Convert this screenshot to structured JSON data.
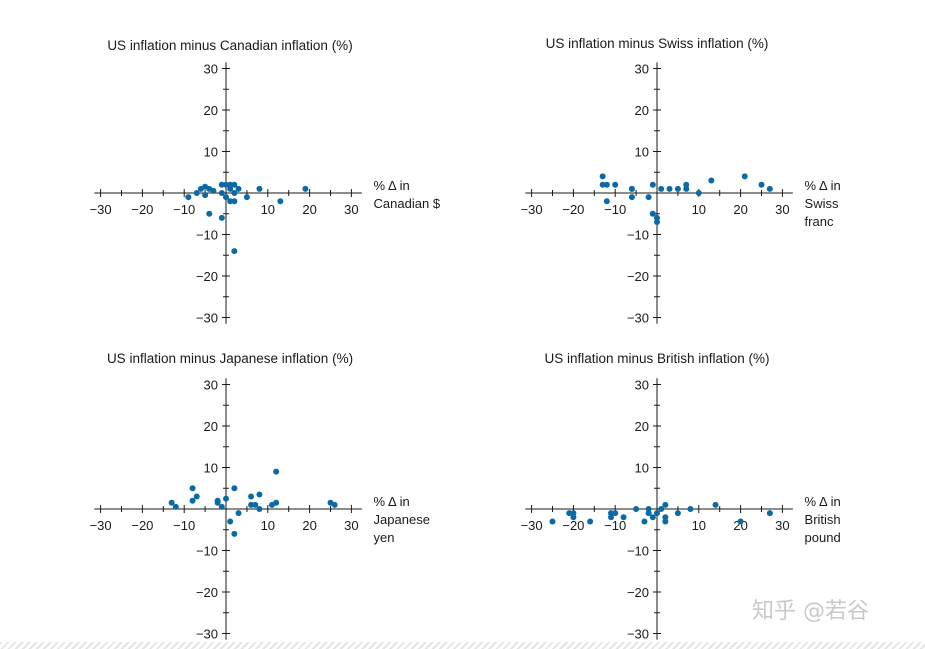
{
  "chart_data": [
    {
      "type": "scatter",
      "title": "US inflation minus Canadian inflation (%)",
      "xlabel": [
        "% Δ in",
        "Canadian $"
      ],
      "xlim": [
        -30,
        30
      ],
      "ylim": [
        -30,
        30
      ],
      "x_ticks": [
        "−30",
        "−20",
        "−10",
        "10",
        "20",
        "30"
      ],
      "y_ticks": [
        "30",
        "20",
        "10",
        "−10",
        "−20",
        "−30"
      ],
      "points": [
        [
          -9,
          -1
        ],
        [
          -7,
          0
        ],
        [
          -6,
          1
        ],
        [
          -5,
          1.5
        ],
        [
          -5,
          -0.5
        ],
        [
          -4,
          1
        ],
        [
          -3,
          0.5
        ],
        [
          -4,
          -5
        ],
        [
          -1,
          0
        ],
        [
          -1,
          2
        ],
        [
          0,
          2
        ],
        [
          0,
          -1
        ],
        [
          1,
          1
        ],
        [
          1,
          2
        ],
        [
          1,
          -2
        ],
        [
          2,
          2
        ],
        [
          2,
          -2
        ],
        [
          2,
          0
        ],
        [
          3,
          1
        ],
        [
          -1,
          -6
        ],
        [
          2,
          -14
        ],
        [
          5,
          -1
        ],
        [
          8,
          1
        ],
        [
          13,
          -2
        ],
        [
          19,
          1
        ]
      ]
    },
    {
      "type": "scatter",
      "title": "US inflation minus Swiss inflation (%)",
      "xlabel": [
        "% Δ in",
        "Swiss",
        "franc"
      ],
      "xlim": [
        -30,
        30
      ],
      "ylim": [
        -30,
        30
      ],
      "x_ticks": [
        "−30",
        "−20",
        "−10",
        "10",
        "20",
        "30"
      ],
      "y_ticks": [
        "30",
        "20",
        "10",
        "−10",
        "−20",
        "−30"
      ],
      "points": [
        [
          -13,
          4
        ],
        [
          -13,
          2
        ],
        [
          -12,
          2
        ],
        [
          -12,
          -2
        ],
        [
          -10,
          2
        ],
        [
          -6,
          1
        ],
        [
          -6,
          -1
        ],
        [
          -6,
          1
        ],
        [
          -2,
          -1
        ],
        [
          -1,
          2
        ],
        [
          -1,
          -5
        ],
        [
          0,
          -6
        ],
        [
          0,
          -7
        ],
        [
          1,
          1
        ],
        [
          3,
          1
        ],
        [
          5,
          1
        ],
        [
          7,
          1
        ],
        [
          7,
          2
        ],
        [
          10,
          0
        ],
        [
          13,
          3
        ],
        [
          21,
          4
        ],
        [
          25,
          2
        ],
        [
          27,
          1
        ]
      ]
    },
    {
      "type": "scatter",
      "title": "US inflation minus Japanese inflation (%)",
      "xlabel": [
        "% Δ in",
        "Japanese",
        "yen"
      ],
      "xlim": [
        -30,
        30
      ],
      "ylim": [
        -30,
        30
      ],
      "x_ticks": [
        "−30",
        "−20",
        "−10",
        "10",
        "20",
        "30"
      ],
      "y_ticks": [
        "30",
        "20",
        "10",
        "−10",
        "−20",
        "−30"
      ],
      "points": [
        [
          -13,
          1.5
        ],
        [
          -12,
          0.5
        ],
        [
          -8,
          5
        ],
        [
          -7,
          3
        ],
        [
          -8,
          2
        ],
        [
          -2,
          2
        ],
        [
          -2,
          1.5
        ],
        [
          -1,
          0.5
        ],
        [
          0,
          2.5
        ],
        [
          1,
          -3
        ],
        [
          2,
          5
        ],
        [
          2,
          -6
        ],
        [
          3,
          -1
        ],
        [
          6,
          3
        ],
        [
          6,
          1
        ],
        [
          7,
          1
        ],
        [
          8,
          0
        ],
        [
          8,
          3.5
        ],
        [
          11,
          1
        ],
        [
          12,
          1.5
        ],
        [
          12,
          9
        ],
        [
          25,
          1.5
        ],
        [
          26,
          1
        ]
      ]
    },
    {
      "type": "scatter",
      "title": "US inflation minus British inflation (%)",
      "xlabel": [
        "% Δ in",
        "British",
        "pound"
      ],
      "xlim": [
        -30,
        30
      ],
      "ylim": [
        -30,
        30
      ],
      "x_ticks": [
        "−30",
        "−20",
        "−10",
        "10",
        "20",
        "30"
      ],
      "y_ticks": [
        "30",
        "20",
        "10",
        "−10",
        "−20",
        "−30"
      ],
      "points": [
        [
          -25,
          -3
        ],
        [
          -21,
          -1
        ],
        [
          -20,
          -1
        ],
        [
          -20,
          -2
        ],
        [
          -16,
          -3
        ],
        [
          -11,
          -1
        ],
        [
          -11,
          -2
        ],
        [
          -10,
          -1
        ],
        [
          -8,
          -2
        ],
        [
          -5,
          0
        ],
        [
          -3,
          -3
        ],
        [
          -2,
          0
        ],
        [
          -2,
          -1
        ],
        [
          -1,
          -2
        ],
        [
          0,
          -1
        ],
        [
          1,
          0
        ],
        [
          2,
          1
        ],
        [
          2,
          -2
        ],
        [
          2,
          -3
        ],
        [
          5,
          -1
        ],
        [
          8,
          0
        ],
        [
          14,
          1
        ],
        [
          20,
          -3
        ],
        [
          27,
          -1
        ]
      ]
    }
  ],
  "watermark": "知乎 @若谷"
}
